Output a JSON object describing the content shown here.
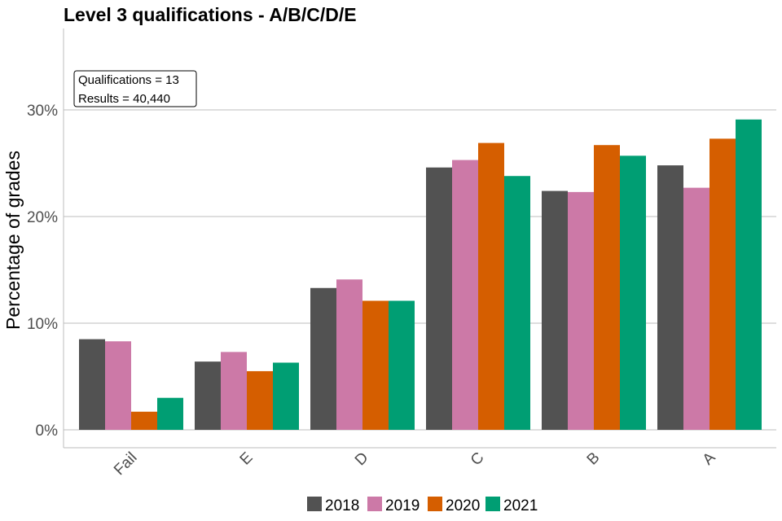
{
  "chart_data": {
    "type": "bar",
    "title": "Level 3 qualifications  - A/B/C/D/E",
    "xlabel": "",
    "ylabel": "Percentage of grades",
    "categories": [
      "Fail",
      "E",
      "D",
      "C",
      "B",
      "A"
    ],
    "series": [
      {
        "name": "2018",
        "color": "#525252",
        "values": [
          8.5,
          6.4,
          13.3,
          24.6,
          22.4,
          24.8
        ]
      },
      {
        "name": "2019",
        "color": "#cc79a7",
        "values": [
          8.3,
          7.3,
          14.1,
          25.3,
          22.3,
          22.7
        ]
      },
      {
        "name": "2020",
        "color": "#d55e00",
        "values": [
          1.7,
          5.5,
          12.1,
          26.9,
          26.7,
          27.3
        ]
      },
      {
        "name": "2021",
        "color": "#009e73",
        "values": [
          3.0,
          6.3,
          12.1,
          23.8,
          25.7,
          29.1
        ]
      }
    ],
    "ylim": [
      0,
      37.5
    ],
    "yticks": [
      0,
      10,
      20,
      30
    ],
    "ytick_labels": [
      "0%",
      "10%",
      "20%",
      "30%"
    ],
    "grid": true,
    "legend_position": "bottom",
    "annotation": {
      "line1": "Qualifications = 13",
      "line2": "Results = 40,440"
    }
  }
}
